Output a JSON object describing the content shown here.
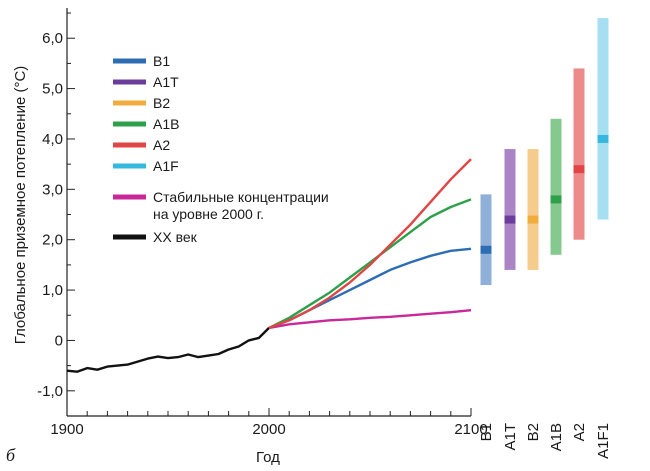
{
  "chart_data": {
    "type": "line",
    "panel_label": "б",
    "title": "",
    "xlabel": "Год",
    "ylabel": "Глобальное приземное потепление (°С)",
    "xlim": [
      1900,
      2100
    ],
    "ylim": [
      -1.5,
      6.6
    ],
    "x_ticks": [
      1900,
      2000,
      2100
    ],
    "x_tick_labels": [
      "1900",
      "2000",
      "2100"
    ],
    "y_ticks": [
      -1,
      0,
      1,
      2,
      3,
      4,
      5,
      6
    ],
    "y_tick_labels": [
      "-1,0",
      "0",
      "1,0",
      "2,0",
      "3,0",
      "4,0",
      "5,0",
      "6,0"
    ],
    "grid": false,
    "legend_position": "top-left",
    "legend": [
      {
        "label": "B1",
        "color": "#2e6db4"
      },
      {
        "label": "A1T",
        "color": "#6a3d9a"
      },
      {
        "label": "B2",
        "color": "#f0ac3c"
      },
      {
        "label": "A1B",
        "color": "#2ea04a"
      },
      {
        "label": "A2",
        "color": "#e04646"
      },
      {
        "label": "A1F",
        "color": "#35b8e0"
      },
      {
        "label": "Стабильные концентрации",
        "label2": "на уровне 2000 г.",
        "color": "#c8289a"
      },
      {
        "label": "XX век",
        "color": "#111111"
      }
    ],
    "series": [
      {
        "name": "XX век",
        "color": "#111111",
        "x": [
          1900,
          1905,
          1910,
          1915,
          1920,
          1925,
          1930,
          1935,
          1940,
          1945,
          1950,
          1955,
          1960,
          1965,
          1970,
          1975,
          1980,
          1985,
          1990,
          1995,
          2000
        ],
        "y": [
          -0.6,
          -0.62,
          -0.55,
          -0.58,
          -0.52,
          -0.5,
          -0.48,
          -0.42,
          -0.36,
          -0.32,
          -0.35,
          -0.33,
          -0.28,
          -0.33,
          -0.3,
          -0.27,
          -0.18,
          -0.12,
          0.0,
          0.05,
          0.25
        ]
      },
      {
        "name": "Стабильные концентрации на уровне 2000 г.",
        "color": "#c8289a",
        "x": [
          2000,
          2010,
          2020,
          2030,
          2040,
          2050,
          2060,
          2070,
          2080,
          2090,
          2100
        ],
        "y": [
          0.25,
          0.32,
          0.36,
          0.4,
          0.42,
          0.45,
          0.47,
          0.5,
          0.53,
          0.56,
          0.6
        ]
      },
      {
        "name": "B1",
        "color": "#2e6db4",
        "x": [
          2000,
          2010,
          2020,
          2030,
          2040,
          2050,
          2060,
          2070,
          2080,
          2090,
          2100
        ],
        "y": [
          0.25,
          0.4,
          0.6,
          0.8,
          1.0,
          1.2,
          1.4,
          1.55,
          1.68,
          1.78,
          1.82
        ]
      },
      {
        "name": "A1B",
        "color": "#2ea04a",
        "x": [
          2000,
          2010,
          2020,
          2030,
          2040,
          2050,
          2060,
          2070,
          2080,
          2090,
          2100
        ],
        "y": [
          0.25,
          0.45,
          0.7,
          0.95,
          1.25,
          1.55,
          1.85,
          2.15,
          2.45,
          2.65,
          2.8
        ]
      },
      {
        "name": "A2",
        "color": "#e04646",
        "x": [
          2000,
          2010,
          2020,
          2030,
          2040,
          2050,
          2060,
          2070,
          2080,
          2090,
          2100
        ],
        "y": [
          0.25,
          0.4,
          0.6,
          0.85,
          1.15,
          1.5,
          1.9,
          2.3,
          2.75,
          3.2,
          3.6
        ]
      }
    ],
    "ranges": [
      {
        "name": "B1",
        "low": 1.1,
        "best": 1.8,
        "high": 2.9,
        "color": "#2e6db4",
        "light": "#8fb0d8"
      },
      {
        "name": "A1T",
        "low": 1.4,
        "best": 2.4,
        "high": 3.8,
        "color": "#6a3d9a",
        "light": "#ab84c6"
      },
      {
        "name": "B2",
        "low": 1.4,
        "best": 2.4,
        "high": 3.8,
        "color": "#f0ac3c",
        "light": "#f6cc8c"
      },
      {
        "name": "A1B",
        "low": 1.7,
        "best": 2.8,
        "high": 4.4,
        "color": "#2ea04a",
        "light": "#86c98f"
      },
      {
        "name": "A2",
        "low": 2.0,
        "best": 3.4,
        "high": 5.4,
        "color": "#e04646",
        "light": "#ed8b8b"
      },
      {
        "name": "A1F1",
        "low": 2.4,
        "best": 4.0,
        "high": 6.4,
        "color": "#35b8e0",
        "light": "#a6dff2"
      }
    ]
  }
}
